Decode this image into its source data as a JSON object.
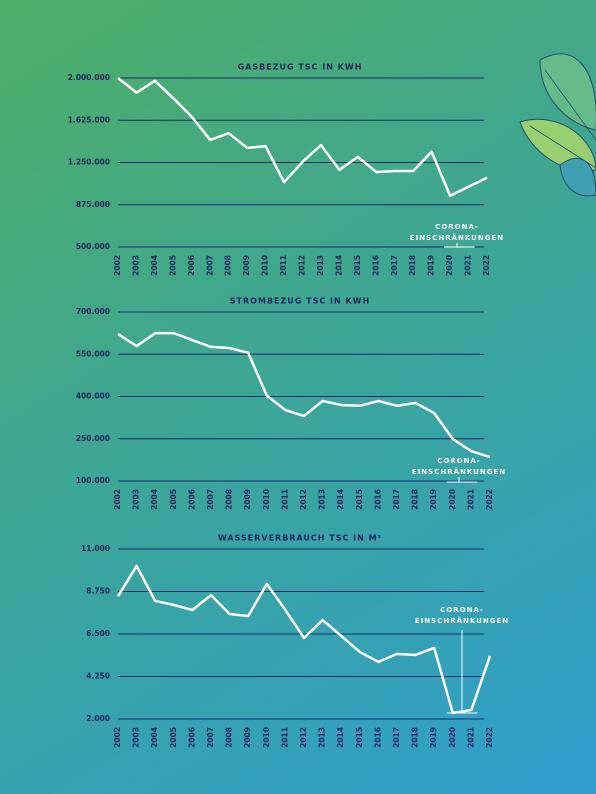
{
  "chart_data": [
    {
      "type": "line",
      "title": "GASBEZUG TSC IN KWH",
      "categories": [
        "2002",
        "2003",
        "2004",
        "2005",
        "2006",
        "2007",
        "2008",
        "2009",
        "2010",
        "2011",
        "2012",
        "2013",
        "2014",
        "2015",
        "2016",
        "2017",
        "2018",
        "2019",
        "2020",
        "2021",
        "2022"
      ],
      "values": [
        2000000,
        1870000,
        1975000,
        1820000,
        1655000,
        1450000,
        1510000,
        1380000,
        1395000,
        1075000,
        1255000,
        1405000,
        1185000,
        1300000,
        1165000,
        1175000,
        1175000,
        1345000,
        955000,
        1035000,
        1115000
      ],
      "color": "#ffffff",
      "ylim": [
        500000,
        2000000
      ],
      "yticks": [
        {
          "value": 500000,
          "label": "500.000"
        },
        {
          "value": 875000,
          "label": "875.000"
        },
        {
          "value": 1250000,
          "label": "1.250.000"
        },
        {
          "value": 1625000,
          "label": "1.625.000"
        },
        {
          "value": 2000000,
          "label": "2.000.000"
        }
      ],
      "grid": true,
      "annotation": [
        "CORONA-",
        "EINSCHRÄNKUNGEN"
      ]
    },
    {
      "type": "line",
      "title": "STROMBEZUG TSC IN KWH",
      "categories": [
        "2002",
        "2003",
        "2004",
        "2005",
        "2006",
        "2007",
        "2008",
        "2009",
        "2010",
        "2011",
        "2012",
        "2013",
        "2014",
        "2015",
        "2016",
        "2017",
        "2018",
        "2019",
        "2020",
        "2021",
        "2022"
      ],
      "values": [
        622000,
        579000,
        625000,
        625000,
        600000,
        576000,
        572000,
        555000,
        403000,
        352000,
        331000,
        384000,
        370000,
        367000,
        384000,
        367000,
        377000,
        341000,
        249000,
        206000,
        185000
      ],
      "color": "#ffffff",
      "ylim": [
        100000,
        700000
      ],
      "yticks": [
        {
          "value": 100000,
          "label": "100.000"
        },
        {
          "value": 250000,
          "label": "250.000"
        },
        {
          "value": 400000,
          "label": "400.000"
        },
        {
          "value": 550000,
          "label": "550.000"
        },
        {
          "value": 700000,
          "label": "700.000"
        }
      ],
      "grid": true,
      "annotation": [
        "CORONA-",
        "EINSCHRÄNKUNGEN"
      ]
    },
    {
      "type": "line",
      "title": "WASSERVERBRAUCH TSC IN M³",
      "categories": [
        "2002",
        "2003",
        "2004",
        "2005",
        "2006",
        "2007",
        "2008",
        "2009",
        "2010",
        "2011",
        "2012",
        "2013",
        "2014",
        "2015",
        "2016",
        "2017",
        "2018",
        "2019",
        "2020",
        "2021",
        "2022"
      ],
      "values": [
        8500,
        10100,
        8250,
        8040,
        7770,
        8560,
        7560,
        7450,
        9150,
        7770,
        6290,
        7240,
        6400,
        5550,
        5020,
        5450,
        5390,
        5760,
        2320,
        2480,
        5340
      ],
      "color": "#ffffff",
      "ylim": [
        2000,
        11000
      ],
      "yticks": [
        {
          "value": 2000,
          "label": "2.000"
        },
        {
          "value": 4250,
          "label": "4.250"
        },
        {
          "value": 6500,
          "label": "6.500"
        },
        {
          "value": 8750,
          "label": "8.750"
        },
        {
          "value": 11000,
          "label": "11.000"
        }
      ],
      "grid": true,
      "annotation": [
        "CORONA-",
        "EINSCHRÄNKUNGEN"
      ]
    }
  ]
}
